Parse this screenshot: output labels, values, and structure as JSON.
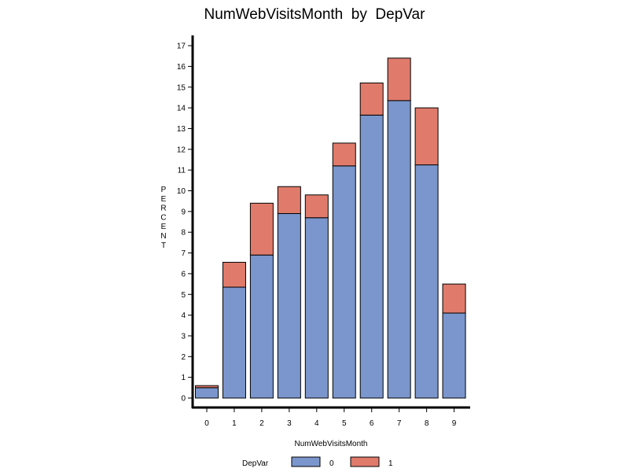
{
  "chart_data": {
    "type": "bar",
    "stacked": true,
    "title": "NumWebVisitsMonth  by  DepVar",
    "xlabel": "NumWebVisitsMonth",
    "ylabel": "PERCENT",
    "categories": [
      "0",
      "1",
      "2",
      "3",
      "4",
      "5",
      "6",
      "7",
      "8",
      "9"
    ],
    "yticks": [
      "0",
      "1",
      "2",
      "3",
      "4",
      "5",
      "6",
      "7",
      "8",
      "9",
      "10",
      "11",
      "12",
      "13",
      "14",
      "15",
      "16",
      "17"
    ],
    "ylim": [
      0,
      17
    ],
    "series": [
      {
        "name": "0",
        "color": "#7b96cc",
        "values": [
          0.5,
          5.35,
          6.9,
          8.9,
          8.7,
          11.2,
          13.65,
          14.35,
          11.25,
          4.1
        ]
      },
      {
        "name": "1",
        "color": "#e07b6c",
        "values": [
          0.1,
          1.2,
          2.5,
          1.3,
          1.1,
          1.1,
          1.55,
          2.05,
          2.75,
          1.4
        ]
      }
    ],
    "legend": {
      "title": "DepVar",
      "placement": "bottom"
    },
    "grid": false
  }
}
